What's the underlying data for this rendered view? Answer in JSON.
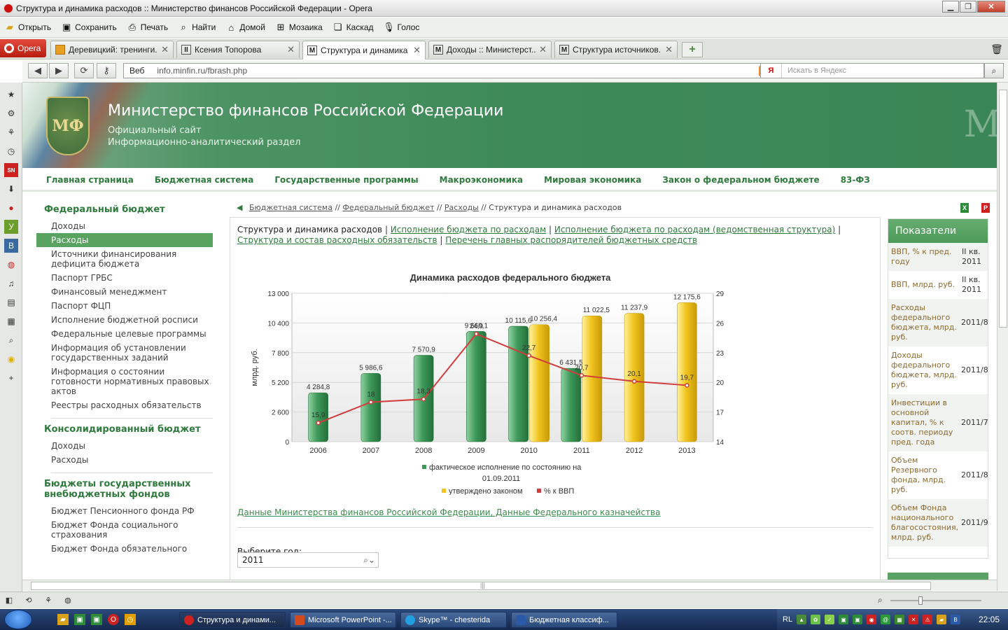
{
  "window": {
    "title": "Структура и динамика расходов :: Министерство финансов Российской Федерации - Opera"
  },
  "toolbar": {
    "items": [
      "Открыть",
      "Сохранить",
      "Печать",
      "Найти",
      "Домой",
      "Мозаика",
      "Каскад",
      "Голос"
    ]
  },
  "tabs": {
    "opera_label": "Opera",
    "items": [
      {
        "label": "Деревицкий: тренинги...",
        "fav_letter": "",
        "fav_color": "#e8a020"
      },
      {
        "label": "Ксения Топорова",
        "fav_letter": "II",
        "fav_color": "#ffffff"
      },
      {
        "label": "Структура и динамика ...",
        "fav_letter": "M",
        "fav_color": "#ffffff"
      },
      {
        "label": "Доходы :: Министерст...",
        "fav_letter": "M",
        "fav_color": "#ffffff"
      },
      {
        "label": "Структура источников...",
        "fav_letter": "M",
        "fav_color": "#ffffff"
      }
    ],
    "active_index": 2
  },
  "address": {
    "prefix": "Веб",
    "url": "info.minfin.ru/fbrash.php",
    "search_placeholder": "Искать в Яндекс",
    "search_engine": "Я"
  },
  "header": {
    "emblem_text": "МФ",
    "title": "Министерство финансов Российской Федерации",
    "sub1": "Официальный сайт",
    "sub2": "Информационно-аналитический раздел",
    "side_letter": "М"
  },
  "mainnav": [
    "Главная страница",
    "Бюджетная система",
    "Государственные программы",
    "Макроэкономика",
    "Мировая экономика",
    "Закон о федеральном бюджете",
    "83-ФЗ"
  ],
  "sidemenu": {
    "group1": {
      "title": "Федеральный бюджет",
      "items": [
        "Доходы",
        "Расходы",
        "Источники финансирования дефицита бюджета",
        "Паспорт ГРБС",
        "Финансовый менеджмент",
        "Паспорт ФЦП",
        "Исполнение бюджетной росписи",
        "Федеральные целевые программы",
        "Информация об установлении государственных заданий",
        "Информация о состоянии готовности нормативных правовых актов",
        "Реестры расходных обязательств"
      ]
    },
    "group2": {
      "title": "Консолидированный бюджет",
      "items": [
        "Доходы",
        "Расходы"
      ]
    },
    "group3": {
      "title": "Бюджеты государственных внебюджетных фондов",
      "items": [
        "Бюджет Пенсионного фонда РФ",
        "Бюджет Фонда социального страхования",
        "Бюджет Фонда обязательного"
      ]
    }
  },
  "breadcrumb": {
    "links": [
      "Бюджетная система",
      "Федеральный бюджет",
      "Расходы"
    ],
    "current": "Структура и динамика расходов",
    "sep": " // "
  },
  "subnav": {
    "current": "Структура и динамика расходов",
    "links": [
      "Исполнение бюджета по расходам",
      "Исполнение бюджета по расходам (ведомственная структура)",
      "Структура и состав расходных обязательств",
      "Перечень главных распорядителей бюджетных средств"
    ]
  },
  "chart_data": {
    "type": "bar",
    "title": "Динамика расходов федерального бюджета",
    "ylabel": "млрд. руб.",
    "y2label": "% к ВВП",
    "ylim": [
      0,
      13000
    ],
    "y2lim": [
      14,
      29
    ],
    "yticks": [
      "0",
      "2 600",
      "5 200",
      "7 800",
      "10 400",
      "13 000"
    ],
    "y2ticks": [
      "14",
      "17",
      "20",
      "23",
      "26",
      "29"
    ],
    "categories": [
      "2006",
      "2007",
      "2008",
      "2009",
      "2010",
      "2011",
      "2012",
      "2013"
    ],
    "series": [
      {
        "name": "фактическое исполнение по состоянию на 01.09.2011",
        "color": "#3f9a5a",
        "values": [
          4284.8,
          5986.6,
          7570.9,
          9660.1,
          10115.6,
          6431.5,
          null,
          null
        ],
        "labels": [
          "4 284,8",
          "5 986,6",
          "7 570,9",
          "9 660,1",
          "10 115,6",
          "6 431,5",
          "",
          ""
        ]
      },
      {
        "name": "утверждено законом",
        "color": "#f2c51f",
        "values": [
          null,
          null,
          null,
          null,
          10256.4,
          11022.5,
          11237.9,
          12175.6
        ],
        "labels": [
          "",
          "",
          "",
          "",
          "10 256,4",
          "11 022,5",
          "11 237,9",
          "12 175,6"
        ]
      },
      {
        "name": "% к ВВП",
        "color": "#d23c3c",
        "type": "line",
        "values": [
          15.9,
          18.0,
          18.3,
          24.9,
          22.7,
          20.7,
          20.1,
          19.7
        ],
        "labels": [
          "15,9",
          "18",
          "18,3",
          "24,9",
          "22,7",
          "20,7",
          "20,1",
          "19,7"
        ]
      }
    ],
    "legend": [
      "фактическое исполнение по состоянию на",
      "01.09.2011",
      "утверждено законом",
      "% к ВВП"
    ],
    "legend_position": "bottom",
    "grid": true
  },
  "content": {
    "source": "Данные Министерства финансов Российской Федерации, Данные Федерального казначейства",
    "year_label": "Выберите год:",
    "year_value": "2011"
  },
  "rightpanel": {
    "title": "Показатели",
    "rows": [
      {
        "name": "ВВП, % к пред. году",
        "period": "II кв. 2011"
      },
      {
        "name": "ВВП, млрд. руб.",
        "period": "II кв. 2011"
      },
      {
        "name": "Расходы федерального бюджета, млрд. руб.",
        "period": "2011/8"
      },
      {
        "name": "Доходы федерального бюджета, млрд. руб.",
        "period": "2011/8"
      },
      {
        "name": "Инвестиции в основной капитал, % к соотв. периоду пред. года",
        "period": "2011/7"
      },
      {
        "name": "Объем Резервного фонда, млрд. руб.",
        "period": "2011/8"
      },
      {
        "name": "Объем Фонда национального благосостояния, млрд. руб.",
        "period": "2011/9"
      }
    ]
  },
  "taskbar": {
    "tasks": [
      "Структура и динами...",
      "Microsoft PowerPoint -...",
      "Skype™ - chesterida",
      "Бюджетная классиф..."
    ],
    "lang": "RL",
    "clock": "22:05"
  }
}
